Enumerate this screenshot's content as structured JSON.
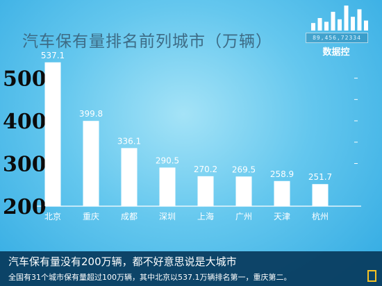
{
  "title": "汽车保有量排名前列城市（万辆）",
  "logo": {
    "code": "89,456,72334",
    "name": "数据控",
    "bar_levels": [
      0.3,
      0.5,
      0.35,
      0.75,
      0.45,
      1.0,
      0.55,
      0.85,
      0.4
    ]
  },
  "chart_data": {
    "type": "bar",
    "title": "汽车保有量排名前列城市（万辆）",
    "categories": [
      "北京",
      "重庆",
      "成都",
      "深圳",
      "上海",
      "广州",
      "天津",
      "杭州"
    ],
    "values": [
      537.1,
      399.8,
      336.1,
      290.5,
      270.2,
      269.5,
      258.9,
      251.7
    ],
    "value_labels": [
      "537.1",
      "399.8",
      "336.1",
      "290.5",
      "270.2",
      "269.5",
      "258.9",
      "251.7"
    ],
    "y_ticks": [
      "200",
      "300",
      "400",
      "500"
    ],
    "ylim": [
      200,
      540
    ],
    "grid": false,
    "legend": "none",
    "bar_color": "#ffffff"
  },
  "caption": {
    "headline": "汽车保有量没有200万辆，都不好意思说是大城市",
    "detail": "全国有31个城市保有量超过100万辆，其中北京以537.1万辆排名第一，重庆第二。"
  }
}
